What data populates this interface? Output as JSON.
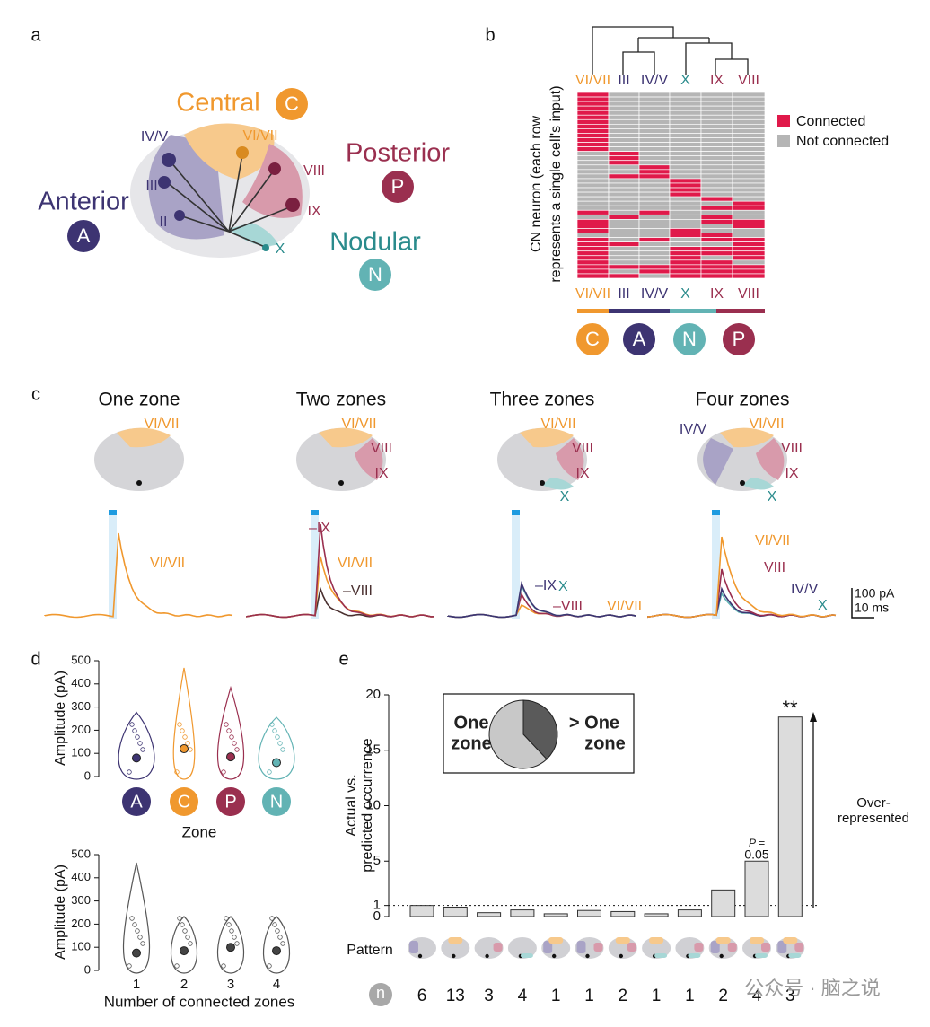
{
  "panels": {
    "a": {
      "label": "a",
      "zones": [
        {
          "name": "Central",
          "letter": "C"
        },
        {
          "name": "Anterior",
          "letter": "A"
        },
        {
          "name": "Posterior",
          "letter": "P"
        },
        {
          "name": "Nodular",
          "letter": "N"
        }
      ],
      "lobes": [
        "IV/V",
        "III",
        "II",
        "VI/VII",
        "VIII",
        "IX",
        "X"
      ]
    },
    "b": {
      "label": "b",
      "y_label": [
        "CN neuron (each row",
        "represents a single cell's input)"
      ],
      "columns": [
        "VI/VII",
        "III",
        "IV/V",
        "X",
        "IX",
        "VIII"
      ],
      "legend": [
        "Connected",
        "Not connected"
      ],
      "colors": {
        "connected": "#e0194a",
        "not_connected": "#b5b5b5"
      },
      "zone_letters": [
        "C",
        "A",
        "N",
        "P"
      ],
      "matrix": [
        [
          1,
          0,
          0,
          0,
          0,
          0
        ],
        [
          1,
          0,
          0,
          0,
          0,
          0
        ],
        [
          1,
          0,
          0,
          0,
          0,
          0
        ],
        [
          1,
          0,
          0,
          0,
          0,
          0
        ],
        [
          1,
          0,
          0,
          0,
          0,
          0
        ],
        [
          1,
          0,
          0,
          0,
          0,
          0
        ],
        [
          1,
          0,
          0,
          0,
          0,
          0
        ],
        [
          1,
          0,
          0,
          0,
          0,
          0
        ],
        [
          1,
          0,
          0,
          0,
          0,
          0
        ],
        [
          1,
          0,
          0,
          0,
          0,
          0
        ],
        [
          1,
          0,
          0,
          0,
          0,
          0
        ],
        [
          1,
          0,
          0,
          0,
          0,
          0
        ],
        [
          1,
          0,
          0,
          0,
          0,
          0
        ],
        [
          0,
          1,
          0,
          0,
          0,
          0
        ],
        [
          0,
          1,
          0,
          0,
          0,
          0
        ],
        [
          0,
          1,
          0,
          0,
          0,
          0
        ],
        [
          0,
          0,
          1,
          0,
          0,
          0
        ],
        [
          0,
          0,
          1,
          0,
          0,
          0
        ],
        [
          0,
          1,
          1,
          0,
          0,
          0
        ],
        [
          0,
          0,
          0,
          1,
          0,
          0
        ],
        [
          0,
          0,
          0,
          1,
          0,
          0
        ],
        [
          0,
          0,
          0,
          1,
          0,
          0
        ],
        [
          0,
          0,
          0,
          1,
          0,
          0
        ],
        [
          0,
          0,
          0,
          0,
          1,
          0
        ],
        [
          0,
          0,
          0,
          0,
          0,
          1
        ],
        [
          0,
          0,
          0,
          0,
          1,
          1
        ],
        [
          1,
          0,
          1,
          0,
          0,
          0
        ],
        [
          0,
          1,
          0,
          0,
          1,
          0
        ],
        [
          1,
          0,
          0,
          0,
          1,
          1
        ],
        [
          1,
          0,
          0,
          0,
          0,
          1
        ],
        [
          1,
          0,
          0,
          1,
          0,
          0
        ],
        [
          0,
          0,
          0,
          1,
          1,
          0
        ],
        [
          1,
          0,
          1,
          0,
          1,
          1
        ],
        [
          1,
          1,
          0,
          0,
          0,
          1
        ],
        [
          1,
          0,
          0,
          1,
          1,
          1
        ],
        [
          1,
          0,
          0,
          1,
          1,
          1
        ],
        [
          1,
          0,
          0,
          1,
          0,
          1
        ],
        [
          1,
          0,
          0,
          1,
          1,
          0
        ],
        [
          1,
          1,
          1,
          1,
          1,
          1
        ],
        [
          1,
          0,
          1,
          1,
          1,
          1
        ],
        [
          1,
          1,
          0,
          1,
          1,
          1
        ]
      ]
    },
    "c": {
      "label": "c",
      "panels": [
        {
          "title": "One zone",
          "lobe_labels": [
            "VI/VII"
          ],
          "trace_labels": [
            "VI/VII"
          ]
        },
        {
          "title": "Two zones",
          "lobe_labels": [
            "VI/VII",
            "VIII",
            "IX"
          ],
          "trace_labels": [
            "–IX",
            "VI/VII",
            "–VIII"
          ]
        },
        {
          "title": "Three zones",
          "lobe_labels": [
            "VI/VII",
            "VIII",
            "IX",
            "X"
          ],
          "trace_labels": [
            "–IX",
            "X",
            "–VIII",
            "VI/VII"
          ]
        },
        {
          "title": "Four zones",
          "lobe_labels": [
            "IV/V",
            "VI/VII",
            "VIII",
            "IX",
            "X"
          ],
          "trace_labels": [
            "VI/VII",
            "VIII",
            "IV/V",
            "X"
          ]
        }
      ],
      "scale": [
        "100 pA",
        "10 ms"
      ]
    },
    "d": {
      "label": "d",
      "top": {
        "y_label": "Amplitude (pA)",
        "x_label": "Zone",
        "categories": [
          "A",
          "C",
          "P",
          "N"
        ],
        "means": [
          80,
          120,
          85,
          60
        ],
        "ylim": [
          0,
          500
        ],
        "yticks": [
          0,
          100,
          200,
          300,
          400,
          500
        ]
      },
      "bottom": {
        "y_label": "Amplitude (pA)",
        "x_label": "Number of connected zones",
        "categories": [
          "1",
          "2",
          "3",
          "4"
        ],
        "means": [
          75,
          85,
          100,
          85
        ],
        "ylim": [
          0,
          500
        ],
        "yticks": [
          0,
          100,
          200,
          300,
          400,
          500
        ]
      }
    },
    "e": {
      "label": "e",
      "y_label": [
        "Actual vs.",
        "predicted occurrence"
      ],
      "values": [
        1,
        0.85,
        0.35,
        0.6,
        0.25,
        0.55,
        0.45,
        0.25,
        0.6,
        2.4,
        5,
        18
      ],
      "n": [
        6,
        13,
        3,
        4,
        1,
        1,
        2,
        1,
        1,
        2,
        4,
        3
      ],
      "n_label": "n",
      "pattern_label": "Pattern",
      "ylim": [
        0,
        20
      ],
      "yticks": [
        0,
        1,
        5,
        10,
        15,
        20
      ],
      "reference_line": 1,
      "annotations": {
        "p_value": [
          "P =",
          "0.05"
        ],
        "significance": "**",
        "over": [
          "Over-",
          "represented"
        ]
      },
      "pie": {
        "labels": [
          [
            "One",
            "zone"
          ],
          [
            "> One",
            "zone"
          ]
        ],
        "values": [
          62,
          38
        ],
        "colors": [
          "#c8c8c8",
          "#5a5a5a"
        ]
      }
    }
  },
  "watermark": "公众号 · 脑之说"
}
